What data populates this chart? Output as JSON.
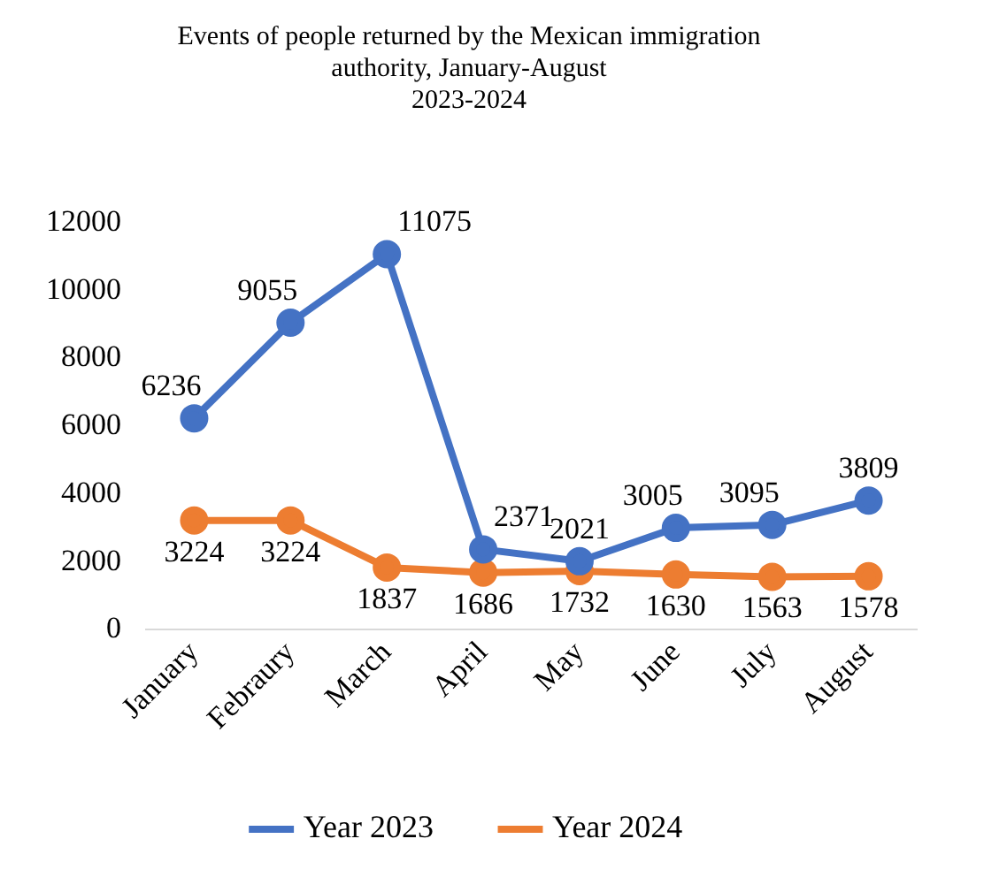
{
  "chart_data": {
    "type": "line",
    "title": "Events of people returned by the Mexican immigration\nauthority, January-August\n2023-2024",
    "categories": [
      "January",
      "Febraury",
      "March",
      "April",
      "May",
      "June",
      "July",
      "August"
    ],
    "series": [
      {
        "name": "Year 2023",
        "color": "#4472c4",
        "values": [
          6236,
          9055,
          11075,
          2371,
          2021,
          3005,
          3095,
          3809
        ]
      },
      {
        "name": "Year 2024",
        "color": "#ed7d31",
        "values": [
          3224,
          3224,
          1837,
          1686,
          1732,
          1630,
          1563,
          1578
        ]
      }
    ],
    "ylim": [
      0,
      12000
    ],
    "yticks": [
      0,
      2000,
      4000,
      6000,
      8000,
      10000,
      12000
    ],
    "grid": false,
    "legend": "bottom",
    "marker": "circle",
    "line_style": "solid",
    "data_labels": true
  }
}
